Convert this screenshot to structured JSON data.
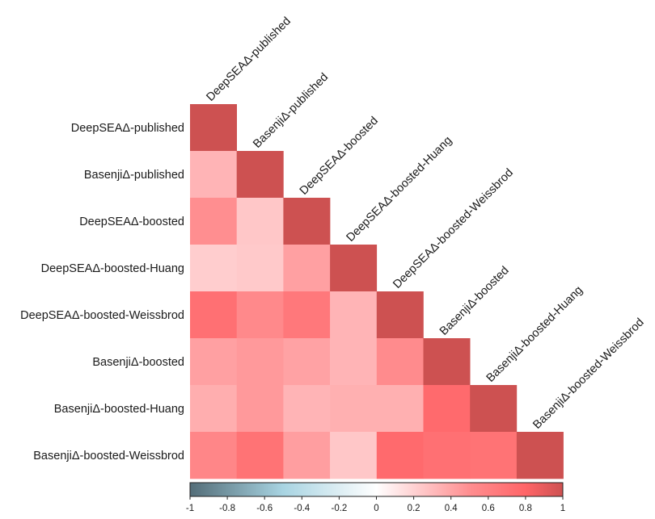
{
  "chart_data": {
    "type": "heatmap",
    "layout": "lower-triangle",
    "labels": [
      "DeepSEAΔ-published",
      "BasenjiΔ-published",
      "DeepSEAΔ-boosted",
      "DeepSEAΔ-boosted-Huang",
      "DeepSEAΔ-boosted-Weissbrod",
      "BasenjiΔ-boosted",
      "BasenjiΔ-boosted-Huang",
      "BasenjiΔ-boosted-Weissbrod"
    ],
    "values": [
      [
        1.0
      ],
      [
        0.33,
        1.0
      ],
      [
        0.5,
        0.25,
        1.0
      ],
      [
        0.22,
        0.24,
        0.42,
        1.0
      ],
      [
        0.72,
        0.54,
        0.66,
        0.33,
        1.0
      ],
      [
        0.42,
        0.45,
        0.41,
        0.33,
        0.52,
        1.0
      ],
      [
        0.36,
        0.45,
        0.33,
        0.35,
        0.35,
        0.76,
        1.0
      ],
      [
        0.56,
        0.7,
        0.43,
        0.25,
        0.76,
        0.72,
        0.7,
        1.0
      ]
    ],
    "colorbar": {
      "min": -1,
      "max": 1,
      "ticks": [
        "-1",
        "-0.8",
        "-0.6",
        "-0.4",
        "-0.2",
        "0",
        "0.2",
        "0.4",
        "0.6",
        "0.8",
        "1"
      ],
      "colors": {
        "neg1": "#536d78",
        "neg05": "#a8d4e2",
        "zero": "#ffffff",
        "pos05": "#ff8e90",
        "pos08": "#ff6568",
        "pos1": "#cd5151"
      }
    }
  }
}
